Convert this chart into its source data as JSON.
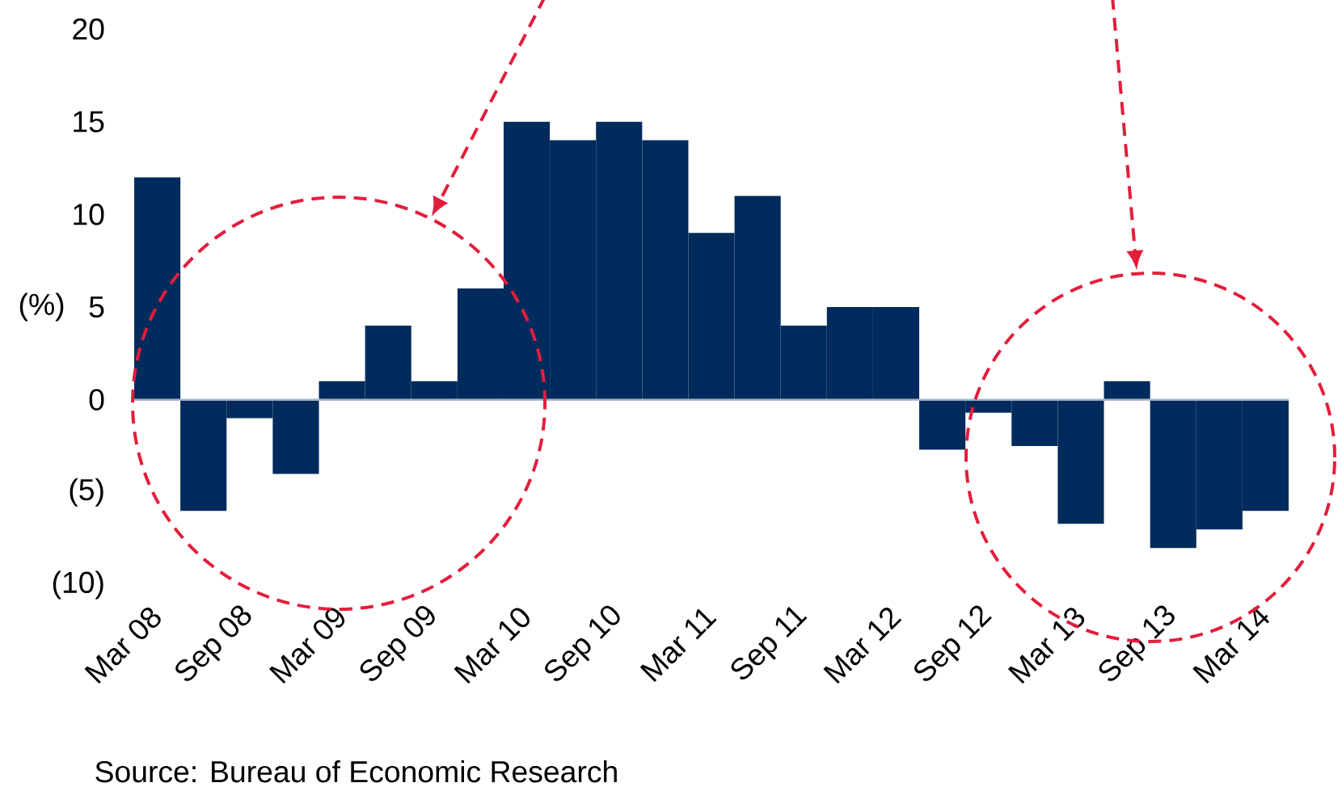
{
  "chart_data": {
    "type": "bar",
    "ylabel": "(%)",
    "categories": [
      "Mar 08",
      null,
      "Sep 08",
      null,
      "Mar 09",
      null,
      "Sep 09",
      null,
      "Mar 10",
      null,
      "Sep 10",
      null,
      "Mar 11",
      null,
      "Sep 11",
      null,
      "Mar 12",
      null,
      "Sep 12",
      null,
      "Mar 13",
      null,
      "Sep 13",
      null,
      "Mar 14"
    ],
    "values": [
      12,
      -6,
      -1,
      -4,
      1,
      4,
      1,
      6,
      15,
      14,
      15,
      14,
      9,
      11,
      4,
      5,
      5,
      -2.7,
      -0.7,
      -2.5,
      -6.7,
      1,
      -8,
      -7,
      -6
    ],
    "color": "#002b5c",
    "ylim": [
      -10,
      20
    ],
    "yticks": [
      {
        "value": -10,
        "label": "(10)"
      },
      {
        "value": -5,
        "label": "(5)"
      },
      0,
      5,
      10,
      15,
      20
    ],
    "annotations": [
      "Source: Bureau of Economic Research"
    ]
  }
}
